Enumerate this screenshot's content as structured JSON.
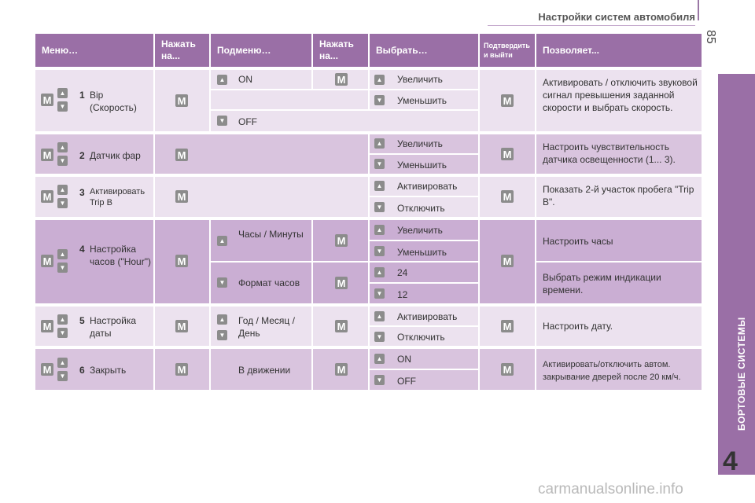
{
  "page": {
    "header_title": "Настройки систем автомобиля",
    "page_number": "85",
    "side_tab": "БОРТОВЫЕ СИСТЕМЫ",
    "chapter": "4",
    "watermark": "carmanualsonline.info"
  },
  "table": {
    "headers": {
      "menu": "Меню…",
      "press1": "Нажать на...",
      "submenu": "Подменю…",
      "press2": "Нажать на...",
      "select": "Выбрать…",
      "confirm": "Подтвердить и выйти",
      "allows": "Позволяет..."
    },
    "button_labels": {
      "m": "M",
      "up": "▲",
      "down": "▼"
    },
    "rows": [
      {
        "num": "1",
        "menu": "Bip (Скорость)",
        "sub_on": "ON",
        "sub_off": "OFF",
        "sel_1": "Увеличить",
        "sel_2": "Уменьшить",
        "desc": "Активировать / отключить звуковой сигнал превышения заданной скорости и выбрать скорость."
      },
      {
        "num": "2",
        "menu": "Датчик фар",
        "sel_1": "Увеличить",
        "sel_2": "Уменьшить",
        "desc": "Настроить чувствительность датчика освещенности (1... 3)."
      },
      {
        "num": "3",
        "menu": "Активировать Trip B",
        "sel_1": "Активировать",
        "sel_2": "Отключить",
        "desc": "Показать 2-й участок пробега \"Trip B\"."
      },
      {
        "num": "4",
        "menu": "Настройка часов (\"Hour\")",
        "sub_a": "Часы / Минуты",
        "sub_b": "Формат часов",
        "sel_1": "Увеличить",
        "sel_2": "Уменьшить",
        "sel_3": "24",
        "sel_4": "12",
        "desc_a": "Настроить часы",
        "desc_b": "Выбрать режим индикации времени."
      },
      {
        "num": "5",
        "menu": "Настройка даты",
        "sub": "Год / Месяц / День",
        "sel_1": "Активировать",
        "sel_2": "Отключить",
        "desc": "Настроить дату."
      },
      {
        "num": "6",
        "menu": "Закрыть",
        "sub": "В движении",
        "sel_1": "ON",
        "sel_2": "OFF",
        "desc": "Активировать/отключить автом. закрывание дверей после 20 км/ч."
      }
    ]
  }
}
